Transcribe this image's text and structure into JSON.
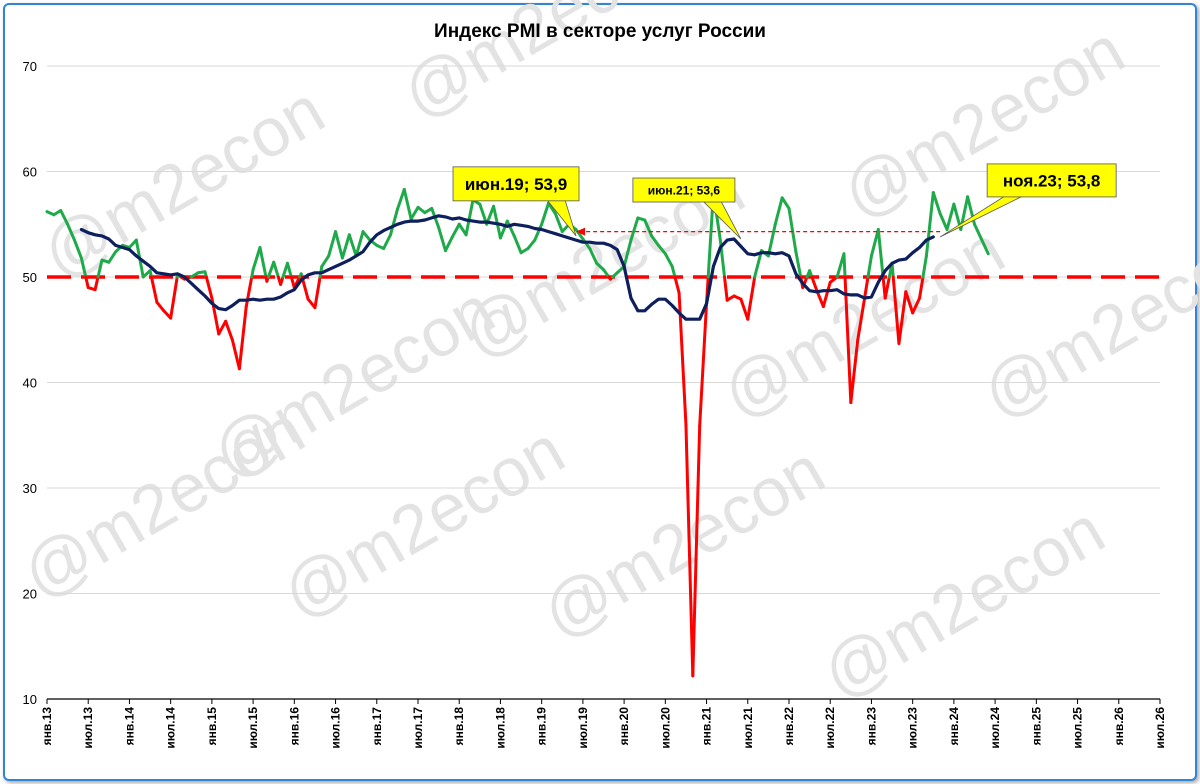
{
  "watermark": "@m2econ",
  "chart_data": {
    "type": "line",
    "title": "Индекс PMI в секторе услуг России",
    "xlabel": "",
    "ylabel": "",
    "ylim": [
      10,
      70
    ],
    "yticks": [
      "10",
      "20",
      "30",
      "40",
      "50",
      "60",
      "70"
    ],
    "x_start": "2013-01",
    "x_end": "2026-07",
    "x_tick_labels": [
      "янв.13",
      "июл.13",
      "янв.14",
      "июл.14",
      "янв.15",
      "июл.15",
      "янв.16",
      "июл.16",
      "янв.17",
      "июл.17",
      "янв.18",
      "июл.18",
      "янв.19",
      "июл.19",
      "янв.20",
      "июл.20",
      "янв.21",
      "июл.21",
      "янв.22",
      "июл.22",
      "янв.23",
      "июл.23",
      "янв.24",
      "июл.24",
      "янв.25",
      "июл.25",
      "янв.26",
      "июл.26"
    ],
    "grid": "horizontal",
    "threshold": 50,
    "colors": {
      "above": "#1faa4a",
      "below": "#ff0000",
      "smoothed": "#0d1f5c",
      "threshold": "#ff0000",
      "callout_bg": "#ffff00"
    },
    "series": [
      {
        "start": "2013-01",
        "values": [
          56.2,
          55.9,
          56.3,
          55.0,
          53.5,
          51.8,
          49.0,
          48.8,
          51.6,
          51.4,
          52.4,
          53.0,
          52.8,
          53.5,
          50.0,
          50.6,
          47.6,
          46.8,
          46.1,
          50.2,
          49.8,
          50.0,
          50.4,
          50.5,
          48.0,
          44.6,
          45.8,
          44.0,
          41.3,
          47.2,
          50.7,
          52.8,
          49.6,
          51.4,
          49.3,
          51.3,
          49.0,
          50.3,
          47.9,
          47.1,
          51.0,
          52.0,
          54.3,
          51.8,
          54.0,
          52.0,
          54.3,
          53.5,
          53.0,
          52.7,
          54.0,
          56.4,
          58.3,
          55.5,
          56.6,
          56.1,
          56.5,
          54.7,
          52.5,
          53.8,
          55.0,
          54.0,
          57.3,
          56.9,
          55.0,
          56.7,
          53.7,
          55.3,
          53.9,
          52.3,
          52.7,
          53.5,
          55.0,
          57.0,
          56.0,
          54.3,
          55.0,
          54.5,
          53.6,
          52.7,
          51.3,
          50.7,
          49.8,
          50.4,
          51.0,
          53.5,
          55.6,
          55.4,
          53.9,
          53.0,
          52.2,
          51.0,
          48.5,
          36.0,
          12.2,
          35.9,
          47.5,
          58.0,
          53.5,
          47.8,
          48.2,
          47.9,
          46.0,
          50.0,
          52.5,
          52.0,
          55.0,
          57.5,
          56.5,
          52.4,
          49.0,
          50.6,
          48.8,
          47.2,
          49.5,
          50.0,
          52.2,
          38.1,
          44.0,
          48.0,
          52.0,
          54.5,
          48.0,
          51.3,
          43.7,
          48.6,
          46.6,
          48.0,
          52.0,
          58.0,
          56.0,
          54.5,
          56.9,
          54.5,
          57.6,
          55.0,
          53.6,
          52.2
        ]
      },
      {
        "name": "",
        "start": "2013-06",
        "values": [
          54.5,
          54.2,
          54.0,
          53.9,
          53.6,
          53.0,
          52.8,
          52.6,
          52.0,
          51.5,
          51.0,
          50.4,
          50.3,
          50.2,
          50.3,
          50.0,
          49.4,
          48.8,
          48.2,
          47.5,
          47.0,
          46.9,
          47.3,
          47.8,
          47.8,
          47.9,
          47.8,
          47.9,
          47.9,
          48.1,
          48.5,
          48.8,
          49.7,
          50.2,
          50.4,
          50.4,
          50.7,
          51.0,
          51.3,
          51.6,
          52.0,
          52.4,
          53.3,
          54.0,
          54.4,
          54.7,
          55.0,
          55.2,
          55.3,
          55.3,
          55.4,
          55.6,
          55.8,
          55.7,
          55.5,
          55.6,
          55.4,
          55.3,
          55.2,
          55.2,
          55.1,
          55.0,
          54.8,
          55.0,
          54.9,
          54.8,
          54.6,
          54.5,
          54.3,
          54.1,
          53.9,
          53.7,
          53.5,
          53.3,
          53.3,
          53.2,
          53.2,
          53.0,
          52.6,
          51.0,
          48.0,
          46.8,
          46.8,
          47.4,
          47.9,
          47.9,
          47.3,
          46.6,
          46.0,
          46.0,
          46.0,
          47.5,
          51.0,
          52.8,
          53.5,
          53.6,
          52.9,
          52.2,
          52.1,
          52.3,
          52.3,
          52.2,
          52.3,
          52.0,
          50.3,
          49.4,
          48.7,
          48.6,
          48.7,
          48.7,
          48.8,
          48.4,
          48.3,
          48.3,
          48.0,
          48.1,
          49.5,
          50.6,
          51.3,
          51.6,
          51.7,
          52.3,
          52.8,
          53.5,
          53.8
        ]
      }
    ],
    "reference_line": {
      "from": "2023-11",
      "to": "2019-06",
      "value": 54.3
    },
    "callouts": [
      {
        "text": "июн.19; 53,9",
        "point": "2019-06",
        "value": 53.9,
        "size": "large"
      },
      {
        "text": "июн.21; 53,6",
        "point": "2021-06",
        "value": 53.6,
        "size": "small"
      },
      {
        "text": "ноя.23; 53,8",
        "point": "2023-11",
        "value": 53.8,
        "size": "large"
      }
    ]
  }
}
